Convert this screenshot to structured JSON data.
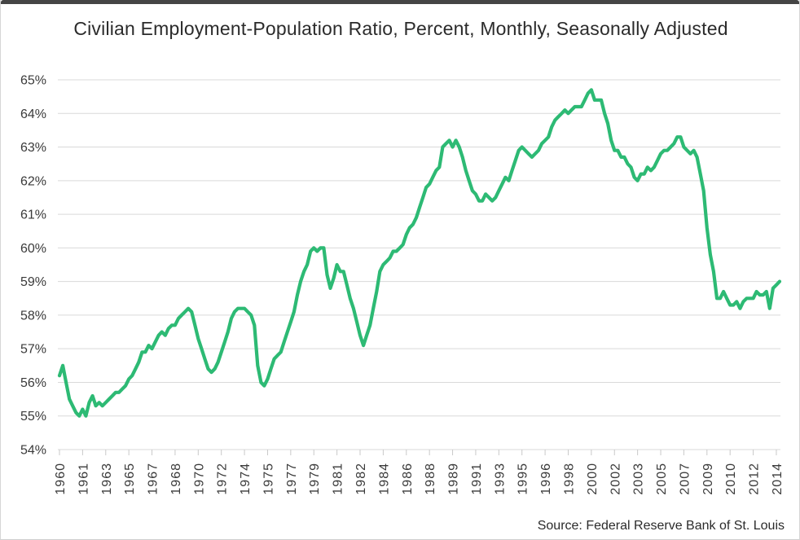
{
  "window": {
    "top_edge_color": "#454545"
  },
  "chart_data": {
    "type": "line",
    "title": "Civilian Employment-Population Ratio, Percent, Monthly, Seasonally Adjusted",
    "source": "Source: Federal Reserve Bank of St. Louis",
    "series_name": "Civilian Employment-Population Ratio",
    "line_color": "#2dba74",
    "grid_color": "#d9d9d9",
    "tick_color": "#c9c9c9",
    "ylim": [
      54,
      65
    ],
    "y_tick_labels": [
      "65%",
      "64%",
      "63%",
      "62%",
      "61%",
      "60%",
      "59%",
      "58%",
      "57%",
      "56%",
      "55%",
      "54%"
    ],
    "x_tick_labels": [
      "1960",
      "1961",
      "1963",
      "1965",
      "1967",
      "1968",
      "1970",
      "1972",
      "1974",
      "1975",
      "1977",
      "1979",
      "1981",
      "1982",
      "1984",
      "1986",
      "1988",
      "1989",
      "1991",
      "1993",
      "1995",
      "1996",
      "1998",
      "2000",
      "2002",
      "2003",
      "2005",
      "2007",
      "2009",
      "2010",
      "2012",
      "2014"
    ],
    "x_tick_interval_months": 21,
    "x_start": "1960-01",
    "x_end": "2014-07",
    "frequency": "quarterly",
    "grid": "horizontal",
    "legend": "none",
    "values": [
      56.2,
      56.5,
      56.0,
      55.5,
      55.3,
      55.1,
      55.0,
      55.2,
      55.0,
      55.4,
      55.6,
      55.3,
      55.4,
      55.3,
      55.4,
      55.5,
      55.6,
      55.7,
      55.7,
      55.8,
      55.9,
      56.1,
      56.2,
      56.4,
      56.6,
      56.9,
      56.9,
      57.1,
      57.0,
      57.2,
      57.4,
      57.5,
      57.4,
      57.6,
      57.7,
      57.7,
      57.9,
      58.0,
      58.1,
      58.2,
      58.1,
      57.7,
      57.3,
      57.0,
      56.7,
      56.4,
      56.3,
      56.4,
      56.6,
      56.9,
      57.2,
      57.5,
      57.9,
      58.1,
      58.2,
      58.2,
      58.2,
      58.1,
      58.0,
      57.7,
      56.5,
      56.0,
      55.9,
      56.1,
      56.4,
      56.7,
      56.8,
      56.9,
      57.2,
      57.5,
      57.8,
      58.1,
      58.6,
      59.0,
      59.3,
      59.5,
      59.9,
      60.0,
      59.9,
      60.0,
      60.0,
      59.2,
      58.8,
      59.1,
      59.5,
      59.3,
      59.3,
      58.9,
      58.5,
      58.2,
      57.8,
      57.4,
      57.1,
      57.4,
      57.7,
      58.2,
      58.7,
      59.3,
      59.5,
      59.6,
      59.7,
      59.9,
      59.9,
      60.0,
      60.1,
      60.4,
      60.6,
      60.7,
      60.9,
      61.2,
      61.5,
      61.8,
      61.9,
      62.1,
      62.3,
      62.4,
      63.0,
      63.1,
      63.2,
      63.0,
      63.2,
      63.0,
      62.7,
      62.3,
      62.0,
      61.7,
      61.6,
      61.4,
      61.4,
      61.6,
      61.5,
      61.4,
      61.5,
      61.7,
      61.9,
      62.1,
      62.0,
      62.3,
      62.6,
      62.9,
      63.0,
      62.9,
      62.8,
      62.7,
      62.8,
      62.9,
      63.1,
      63.2,
      63.3,
      63.6,
      63.8,
      63.9,
      64.0,
      64.1,
      64.0,
      64.1,
      64.2,
      64.2,
      64.2,
      64.4,
      64.6,
      64.7,
      64.4,
      64.4,
      64.4,
      64.0,
      63.7,
      63.2,
      62.9,
      62.9,
      62.7,
      62.7,
      62.5,
      62.4,
      62.1,
      62.0,
      62.2,
      62.2,
      62.4,
      62.3,
      62.4,
      62.6,
      62.8,
      62.9,
      62.9,
      63.0,
      63.1,
      63.3,
      63.3,
      63.0,
      62.9,
      62.8,
      62.9,
      62.7,
      62.2,
      61.7,
      60.6,
      59.8,
      59.3,
      58.5,
      58.5,
      58.7,
      58.5,
      58.3,
      58.3,
      58.4,
      58.2,
      58.4,
      58.5,
      58.5,
      58.5,
      58.7,
      58.6,
      58.6,
      58.7,
      58.2,
      58.8,
      58.9,
      59.0
    ]
  }
}
